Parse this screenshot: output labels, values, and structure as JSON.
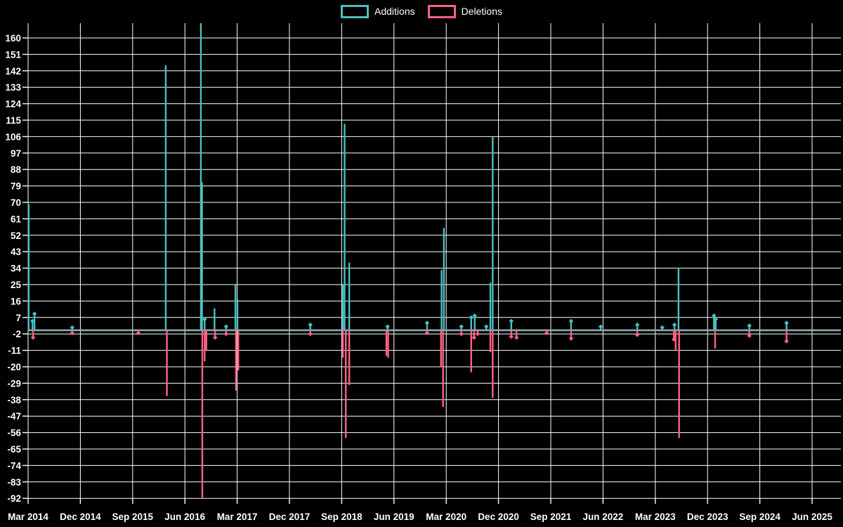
{
  "legend": {
    "additions_label": "Additions",
    "deletions_label": "Deletions"
  },
  "chart_data": {
    "type": "line",
    "description": "Weekly code additions (positive teal spikes) and deletions (negative pink spikes) over time; values are 0 between spikes",
    "legend": [
      "Additions",
      "Deletions"
    ],
    "legend_position": "top-center",
    "grid": true,
    "background_color": "#000000",
    "grid_color": "#ffffff",
    "text_color": "#ffffff",
    "baseline_color": "#8FAFB8",
    "baseline_value": 0,
    "y_axis": {
      "min": -92,
      "max": 160,
      "tick_step": 9,
      "ticks": [
        160,
        151,
        142,
        133,
        124,
        115,
        106,
        97,
        88,
        79,
        70,
        61,
        52,
        43,
        34,
        25,
        16,
        7,
        -2,
        -11,
        -20,
        -29,
        -38,
        -47,
        -56,
        -65,
        -74,
        -83,
        -92
      ]
    },
    "x_axis": {
      "ticks": [
        "Mar 2014",
        "Dec 2014",
        "Sep 2015",
        "Jun 2016",
        "Mar 2017",
        "Dec 2017",
        "Sep 2018",
        "Jun 2019",
        "Mar 2020",
        "Dec 2020",
        "Sep 2021",
        "Jun 2022",
        "Mar 2023",
        "Dec 2023",
        "Sep 2024",
        "Jun 2025"
      ],
      "tick_interval_months": 9,
      "start": "Mar 2014",
      "end": "Jun 2025"
    },
    "series": [
      {
        "name": "Additions",
        "color": "#4BC0C0",
        "x_unit": "months after Mar 2014",
        "spikes": [
          {
            "m": 0.1,
            "v": 69
          },
          {
            "m": 0.75,
            "v": 5
          },
          {
            "m": 1.1,
            "v": 9
          },
          {
            "m": 7.6,
            "v": 1.5
          },
          {
            "m": 23.7,
            "v": 145
          },
          {
            "m": 29.75,
            "v": 170
          },
          {
            "m": 29.95,
            "v": 81
          },
          {
            "m": 30.4,
            "v": 6
          },
          {
            "m": 32.1,
            "v": 12
          },
          {
            "m": 34.1,
            "v": 2
          },
          {
            "m": 35.7,
            "v": 25
          },
          {
            "m": 36.05,
            "v": 17
          },
          {
            "m": 48.6,
            "v": 3
          },
          {
            "m": 54.2,
            "v": 25
          },
          {
            "m": 54.5,
            "v": 113
          },
          {
            "m": 55.3,
            "v": 37
          },
          {
            "m": 61.9,
            "v": 2
          },
          {
            "m": 68.7,
            "v": 4
          },
          {
            "m": 71.2,
            "v": 33
          },
          {
            "m": 71.6,
            "v": 56
          },
          {
            "m": 74.6,
            "v": 2
          },
          {
            "m": 76.3,
            "v": 7
          },
          {
            "m": 76.9,
            "v": 8
          },
          {
            "m": 78.9,
            "v": 2
          },
          {
            "m": 79.6,
            "v": 26
          },
          {
            "m": 80.0,
            "v": 106
          },
          {
            "m": 83.2,
            "v": 5
          },
          {
            "m": 93.5,
            "v": 5
          },
          {
            "m": 98.6,
            "v": 2
          },
          {
            "m": 104.9,
            "v": 3
          },
          {
            "m": 109.2,
            "v": 1.5
          },
          {
            "m": 111.3,
            "v": 3
          },
          {
            "m": 112.0,
            "v": 34
          },
          {
            "m": 118.1,
            "v": 8
          },
          {
            "m": 118.4,
            "v": 6
          },
          {
            "m": 124.2,
            "v": 2.5
          },
          {
            "m": 130.6,
            "v": 4
          }
        ],
        "note": "spike at m=29.75 (Aug 2016) is clipped above the 160 axis maximum"
      },
      {
        "name": "Deletions",
        "color": "#FF6384",
        "x_unit": "months after Mar 2014",
        "spikes": [
          {
            "m": 0.85,
            "v": -4
          },
          {
            "m": 7.6,
            "v": -1.5
          },
          {
            "m": 19.0,
            "v": -1.5
          },
          {
            "m": 23.9,
            "v": -36
          },
          {
            "m": 30.0,
            "v": -92
          },
          {
            "m": 30.4,
            "v": -17
          },
          {
            "m": 30.7,
            "v": -11
          },
          {
            "m": 32.2,
            "v": -4
          },
          {
            "m": 34.1,
            "v": -2
          },
          {
            "m": 35.8,
            "v": -33
          },
          {
            "m": 36.2,
            "v": -22
          },
          {
            "m": 48.6,
            "v": -2
          },
          {
            "m": 54.2,
            "v": -15
          },
          {
            "m": 54.7,
            "v": -59
          },
          {
            "m": 55.3,
            "v": -30
          },
          {
            "m": 61.7,
            "v": -14
          },
          {
            "m": 62.0,
            "v": -15
          },
          {
            "m": 68.7,
            "v": -1.5
          },
          {
            "m": 71.1,
            "v": -20
          },
          {
            "m": 71.45,
            "v": -42
          },
          {
            "m": 74.6,
            "v": -2
          },
          {
            "m": 76.3,
            "v": -23
          },
          {
            "m": 76.8,
            "v": -4
          },
          {
            "m": 77.4,
            "v": -2
          },
          {
            "m": 79.6,
            "v": -12
          },
          {
            "m": 80.0,
            "v": -37
          },
          {
            "m": 83.2,
            "v": -3.5
          },
          {
            "m": 84.1,
            "v": -4
          },
          {
            "m": 89.3,
            "v": -1.5
          },
          {
            "m": 93.5,
            "v": -4.5
          },
          {
            "m": 104.9,
            "v": -2.5
          },
          {
            "m": 111.2,
            "v": -5
          },
          {
            "m": 111.5,
            "v": -11
          },
          {
            "m": 112.1,
            "v": -59
          },
          {
            "m": 118.3,
            "v": -10
          },
          {
            "m": 124.2,
            "v": -3
          },
          {
            "m": 130.6,
            "v": -6
          }
        ]
      }
    ]
  }
}
